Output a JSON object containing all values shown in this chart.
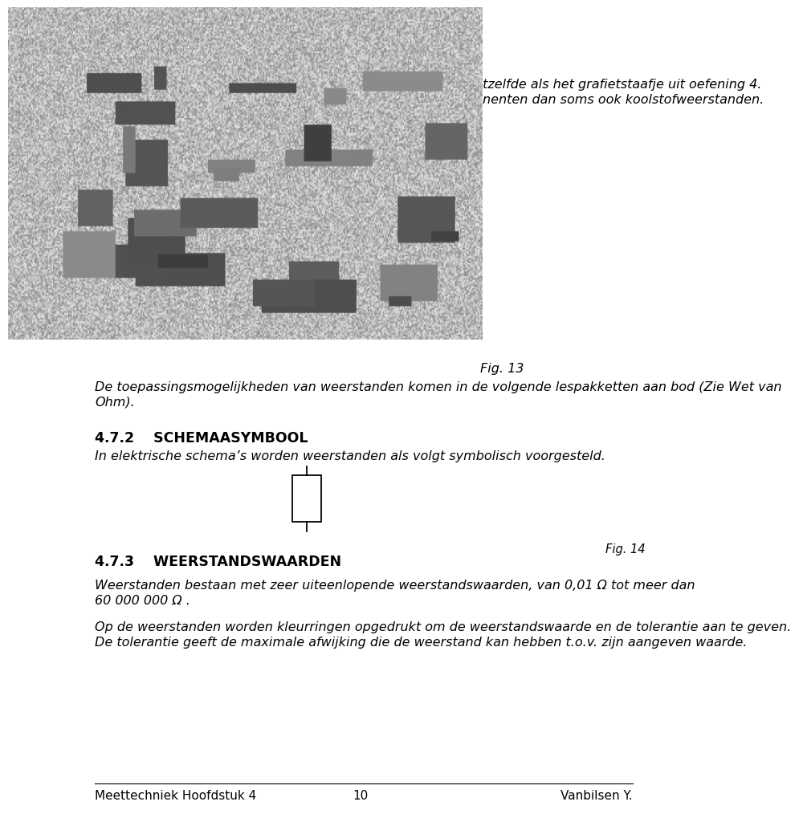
{
  "bg_color": "#ffffff",
  "text_color": "#000000",
  "page_width": 9.6,
  "page_height": 12.18,
  "font_size_body": 11.5,
  "font_size_heading": 12.5,
  "font_size_footer": 11,
  "line1": "Het materiaal waaruit de meeste weerstanden bestaat is hetzelfde als het grafietstaafje uit oefening 4.",
  "line2": "Grafiet bestaat hoofdzakelijk uit koolstof. met noemt componenten dan soms ook koolstofweerstanden.",
  "fig13_label": "Fig. 13",
  "fig13_caption_l1": "De toepassingsmogelijkheden van weerstanden komen in de volgende lespakketten aan bod (Zie Wet van",
  "fig13_caption_l2": "Ohm).",
  "section_472": "4.7.2",
  "section_472_title": "SCHEMAASYMBOOL",
  "section_472_body": "In elektrische schema’s worden weerstanden als volgt symbolisch voorgesteld.",
  "fig14_label": "Fig. 14",
  "section_473": "4.7.3",
  "section_473_title": "WEERSTANDSWAARDEN",
  "section_473_body1_l1": "Weerstanden bestaan met zeer uiteenlopende weerstandswaarden, van 0,01 Ω tot meer dan",
  "section_473_body1_l2": "60 000 000 Ω .",
  "section_473_body2_l1": "Op de weerstanden worden kleurringen opgedrukt om de weerstandswaarde en de tolerantie aan te geven.",
  "section_473_body2_l2": "De tolerantie geeft de maximale afwijking die de weerstand kan hebben t.o.v. zijn aangeven waarde.",
  "footer_left": "Meettechniek Hoofdstuk 4",
  "footer_center": "10",
  "footer_right": "Vanbilsen Y.",
  "ml": 0.055,
  "mr": 0.955
}
